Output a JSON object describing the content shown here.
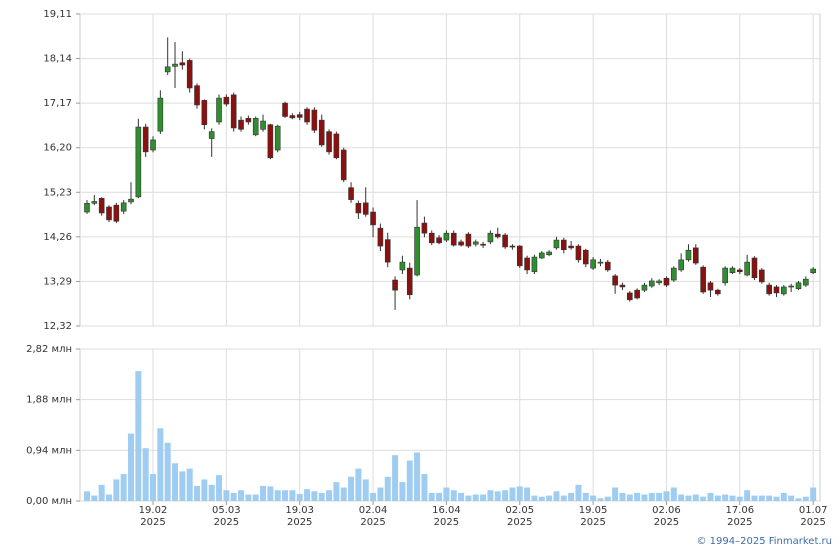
{
  "footer": "© 1994–2025 Finmarket.ru",
  "chart_data": [
    {
      "type": "candlestick",
      "up_color": "#2f8f2f",
      "down_color": "#8b1111",
      "grid": true,
      "ylim": [
        12.32,
        19.11
      ],
      "yticks": [
        {
          "value": 12.32,
          "label": "12,32"
        },
        {
          "value": 13.29,
          "label": "13,29"
        },
        {
          "value": 14.26,
          "label": "14,26"
        },
        {
          "value": 15.23,
          "label": "15,23"
        },
        {
          "value": 16.2,
          "label": "16,20"
        },
        {
          "value": 17.17,
          "label": "17,17"
        },
        {
          "value": 18.14,
          "label": "18,14"
        },
        {
          "value": 19.11,
          "label": "19,11"
        }
      ],
      "open": [
        14.8,
        14.99,
        15.1,
        14.91,
        14.95,
        14.82,
        15.02,
        15.13,
        16.65,
        16.15,
        16.56,
        17.85,
        17.97,
        18.05,
        18.1,
        17.55,
        17.23,
        16.4,
        16.76,
        17.3,
        17.35,
        16.8,
        16.84,
        16.48,
        16.6,
        16.7,
        16.15,
        17.17,
        16.9,
        16.92,
        17.04,
        17.02,
        16.8,
        16.55,
        16.5,
        16.15,
        15.33,
        14.99,
        15.0,
        14.8,
        14.45,
        14.2,
        13.32,
        13.54,
        13.58,
        13.43,
        14.56,
        14.34,
        14.24,
        14.19,
        14.34,
        14.15,
        14.32,
        14.1,
        14.1,
        14.15,
        14.32,
        14.3,
        14.06,
        14.06,
        13.8,
        13.5,
        13.8,
        13.87,
        14.02,
        14.19,
        14.06,
        14.06,
        13.97,
        13.58,
        13.69,
        13.71,
        13.41,
        13.21,
        13.04,
        13.1,
        13.1,
        13.19,
        13.26,
        13.36,
        13.32,
        13.54,
        13.76,
        14.02,
        13.6,
        13.26,
        13.1,
        13.26,
        13.48,
        13.54,
        13.43,
        13.8,
        13.54,
        13.21,
        13.17,
        13.02,
        13.17,
        13.13,
        13.21,
        13.48
      ],
      "high": [
        15.06,
        15.17,
        15.12,
        14.95,
        15.0,
        15.06,
        15.45,
        16.83,
        16.72,
        16.45,
        17.45,
        18.6,
        18.5,
        18.3,
        18.14,
        17.6,
        17.25,
        16.62,
        17.36,
        17.36,
        17.4,
        16.88,
        16.9,
        16.88,
        16.92,
        16.72,
        16.7,
        17.2,
        16.95,
        16.98,
        17.08,
        17.08,
        16.92,
        16.6,
        16.55,
        16.2,
        15.45,
        15.05,
        15.34,
        14.9,
        14.55,
        14.35,
        13.4,
        13.85,
        13.7,
        15.06,
        14.7,
        14.4,
        14.3,
        14.4,
        14.4,
        14.2,
        14.36,
        14.2,
        14.15,
        14.4,
        14.46,
        14.34,
        14.1,
        14.08,
        13.85,
        13.87,
        13.95,
        13.97,
        14.26,
        14.24,
        14.17,
        14.1,
        14.0,
        13.82,
        13.78,
        13.76,
        13.45,
        13.26,
        13.08,
        13.14,
        13.26,
        13.36,
        13.34,
        13.4,
        13.62,
        13.9,
        14.1,
        14.1,
        13.64,
        13.3,
        13.13,
        13.62,
        13.62,
        13.58,
        13.87,
        13.84,
        13.58,
        13.26,
        13.21,
        13.21,
        13.24,
        13.3,
        13.4,
        13.6
      ],
      "low": [
        14.76,
        14.95,
        14.72,
        14.58,
        14.56,
        14.76,
        14.97,
        15.1,
        16.0,
        16.1,
        16.5,
        17.78,
        17.5,
        17.9,
        17.4,
        17.05,
        16.6,
        16.0,
        16.7,
        17.1,
        16.55,
        16.55,
        16.7,
        16.45,
        16.55,
        15.95,
        16.1,
        16.85,
        16.82,
        16.8,
        16.7,
        16.52,
        16.22,
        16.05,
        15.95,
        15.45,
        15.0,
        14.65,
        14.7,
        14.25,
        13.95,
        13.6,
        12.67,
        13.45,
        12.9,
        13.4,
        14.25,
        14.08,
        14.1,
        14.15,
        14.05,
        14.05,
        14.02,
        14.05,
        14.02,
        14.1,
        14.22,
        14.0,
        13.98,
        13.58,
        13.45,
        13.45,
        13.78,
        13.84,
        13.98,
        13.9,
        13.98,
        13.7,
        13.6,
        13.54,
        13.62,
        13.5,
        13.02,
        13.1,
        12.85,
        12.9,
        13.06,
        13.15,
        13.21,
        13.17,
        13.28,
        13.5,
        13.72,
        13.65,
        13.02,
        12.95,
        12.98,
        13.2,
        13.45,
        13.45,
        13.4,
        13.32,
        13.24,
        12.98,
        12.95,
        12.98,
        13.06,
        13.1,
        13.17,
        13.45
      ],
      "close": [
        14.99,
        15.03,
        14.78,
        14.63,
        14.6,
        15.0,
        15.08,
        16.65,
        16.11,
        16.37,
        17.28,
        17.96,
        18.02,
        18.0,
        17.5,
        17.13,
        16.7,
        16.55,
        17.28,
        17.15,
        16.63,
        16.6,
        16.76,
        16.84,
        16.78,
        15.98,
        16.67,
        16.88,
        16.85,
        16.86,
        16.76,
        16.58,
        16.26,
        16.11,
        15.98,
        15.5,
        15.07,
        14.78,
        14.75,
        14.52,
        14.06,
        13.71,
        13.1,
        13.71,
        13.0,
        14.47,
        14.34,
        14.13,
        14.13,
        14.34,
        14.08,
        14.08,
        14.06,
        14.15,
        14.08,
        14.34,
        14.26,
        14.04,
        14.04,
        13.63,
        13.54,
        13.82,
        13.91,
        13.93,
        14.19,
        13.98,
        14.02,
        13.76,
        13.67,
        13.76,
        13.71,
        13.54,
        13.21,
        13.17,
        12.89,
        12.93,
        13.21,
        13.3,
        13.3,
        13.21,
        13.58,
        13.76,
        13.97,
        13.69,
        13.06,
        13.1,
        13.02,
        13.58,
        13.58,
        13.5,
        13.71,
        13.37,
        13.28,
        13.02,
        13.04,
        13.17,
        13.19,
        13.26,
        13.34,
        13.56
      ]
    },
    {
      "type": "bar",
      "color": "#9fcdf2",
      "grid": true,
      "ylim": [
        0,
        2.82
      ],
      "yticks": [
        {
          "value": 0,
          "label": "0,00 млн"
        },
        {
          "value": 0.94,
          "label": "0,94 млн"
        },
        {
          "value": 1.88,
          "label": "1,88 млн"
        },
        {
          "value": 2.82,
          "label": "2,82 млн"
        }
      ],
      "categories": [
        null,
        null,
        null,
        null,
        null,
        null,
        null,
        null,
        null,
        "19.02\n2025",
        null,
        null,
        null,
        null,
        null,
        null,
        null,
        null,
        null,
        "05.03\n2025",
        null,
        null,
        null,
        null,
        null,
        null,
        null,
        null,
        null,
        "19.03\n2025",
        null,
        null,
        null,
        null,
        null,
        null,
        null,
        null,
        null,
        "02.04\n2025",
        null,
        null,
        null,
        null,
        null,
        null,
        null,
        null,
        null,
        "16.04\n2025",
        null,
        null,
        null,
        null,
        null,
        null,
        null,
        null,
        null,
        "02.05\n2025",
        null,
        null,
        null,
        null,
        null,
        null,
        null,
        null,
        null,
        "19.05\n2025",
        null,
        null,
        null,
        null,
        null,
        null,
        null,
        null,
        null,
        "02.06\n2025",
        null,
        null,
        null,
        null,
        null,
        null,
        null,
        null,
        null,
        "17.06\n2025",
        null,
        null,
        null,
        null,
        null,
        null,
        null,
        null,
        null,
        "01.07\n2025"
      ],
      "values": [
        0.18,
        0.1,
        0.3,
        0.12,
        0.4,
        0.5,
        1.25,
        2.41,
        0.98,
        0.5,
        1.35,
        1.08,
        0.7,
        0.55,
        0.6,
        0.28,
        0.4,
        0.3,
        0.48,
        0.2,
        0.15,
        0.2,
        0.12,
        0.12,
        0.28,
        0.27,
        0.2,
        0.2,
        0.2,
        0.13,
        0.22,
        0.18,
        0.15,
        0.2,
        0.35,
        0.25,
        0.45,
        0.6,
        0.4,
        0.15,
        0.25,
        0.45,
        0.85,
        0.35,
        0.75,
        0.9,
        0.5,
        0.15,
        0.15,
        0.25,
        0.2,
        0.15,
        0.1,
        0.12,
        0.12,
        0.2,
        0.18,
        0.2,
        0.25,
        0.27,
        0.25,
        0.1,
        0.08,
        0.1,
        0.18,
        0.1,
        0.15,
        0.3,
        0.15,
        0.1,
        0.05,
        0.08,
        0.25,
        0.15,
        0.12,
        0.15,
        0.12,
        0.15,
        0.15,
        0.18,
        0.25,
        0.12,
        0.1,
        0.12,
        0.08,
        0.15,
        0.1,
        0.12,
        0.1,
        0.08,
        0.2,
        0.1,
        0.1,
        0.1,
        0.08,
        0.15,
        0.1,
        0.05,
        0.08,
        0.25
      ]
    }
  ]
}
